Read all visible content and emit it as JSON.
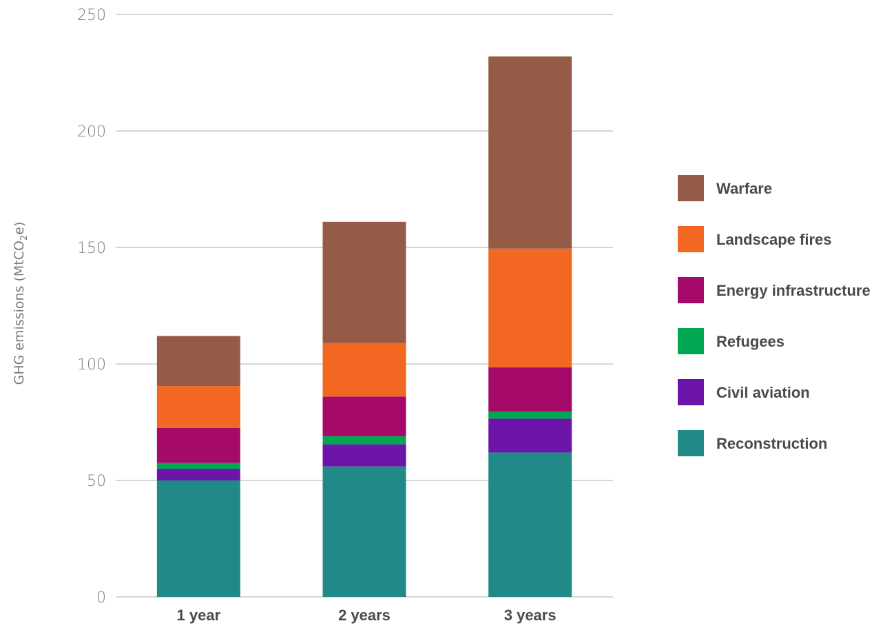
{
  "chart_data": {
    "type": "bar",
    "stacked": true,
    "ylabel_main": "GHG emissions (MtCO",
    "ylabel_sub": "2",
    "ylabel_end": "e)",
    "ylim": [
      0,
      250
    ],
    "yticks": [
      "0",
      "50",
      "100",
      "150",
      "200",
      "250"
    ],
    "grid": true,
    "legend_position": "right",
    "categories": [
      "1 year",
      "2 years",
      "3 years"
    ],
    "series": [
      {
        "name": "Reconstruction",
        "color": "#218987",
        "values": [
          50,
          56,
          62
        ]
      },
      {
        "name": "Civil aviation",
        "color": "#6c15a8",
        "values": [
          5,
          9.5,
          14.5
        ]
      },
      {
        "name": "Refugees",
        "color": "#00a651",
        "values": [
          2.5,
          3.5,
          3
        ]
      },
      {
        "name": "Energy infrastructure",
        "color": "#a50a6a",
        "values": [
          15,
          17,
          19
        ]
      },
      {
        "name": "Landscape fires",
        "color": "#f26722",
        "values": [
          18,
          23,
          51
        ]
      },
      {
        "name": "Warfare",
        "color": "#955b47",
        "values": [
          21.5,
          52,
          82.5
        ]
      }
    ]
  }
}
